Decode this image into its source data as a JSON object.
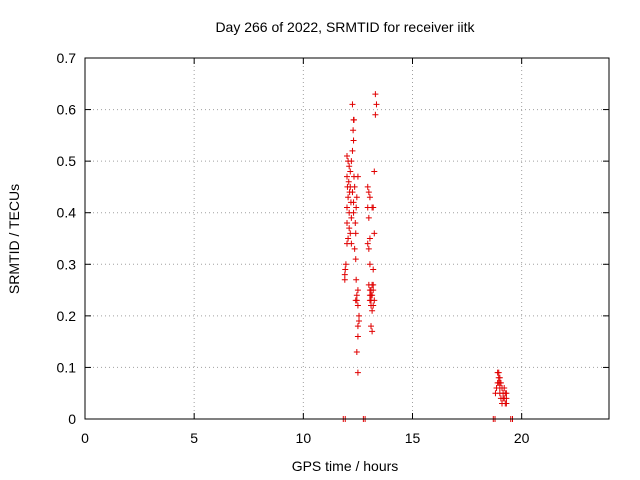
{
  "chart_data": {
    "type": "scatter",
    "title": "Day 266 of 2022, SRMTID for receiver iitk",
    "xlabel": "GPS time / hours",
    "ylabel": "SRMTID / TECUs",
    "xlim": [
      0,
      24
    ],
    "ylim": [
      0,
      0.7
    ],
    "x_ticks": [
      "0",
      "5",
      "10",
      "15",
      "20"
    ],
    "y_ticks": [
      "0",
      "0.1",
      "0.2",
      "0.3",
      "0.4",
      "0.5",
      "0.6",
      "0.7"
    ],
    "grid": true,
    "marker": "plus",
    "color": "#e00000",
    "points": [
      [
        11.83,
        0.0
      ],
      [
        11.92,
        0.0
      ],
      [
        12.75,
        0.0
      ],
      [
        12.83,
        0.0
      ],
      [
        18.7,
        0.0
      ],
      [
        18.78,
        0.0
      ],
      [
        19.5,
        0.0
      ],
      [
        19.58,
        0.0
      ],
      [
        11.9,
        0.28
      ],
      [
        11.92,
        0.29
      ],
      [
        11.95,
        0.3
      ],
      [
        11.9,
        0.27
      ],
      [
        12.0,
        0.34
      ],
      [
        12.05,
        0.35
      ],
      [
        12.1,
        0.37
      ],
      [
        12.0,
        0.41
      ],
      [
        12.05,
        0.43
      ],
      [
        12.02,
        0.45
      ],
      [
        12.08,
        0.46
      ],
      [
        12.0,
        0.47
      ],
      [
        12.05,
        0.5
      ],
      [
        12.0,
        0.51
      ],
      [
        12.1,
        0.49
      ],
      [
        12.12,
        0.44
      ],
      [
        12.15,
        0.48
      ],
      [
        12.18,
        0.42
      ],
      [
        12.2,
        0.39
      ],
      [
        12.15,
        0.36
      ],
      [
        12.2,
        0.34
      ],
      [
        12.25,
        0.52
      ],
      [
        12.28,
        0.56
      ],
      [
        12.3,
        0.58
      ],
      [
        12.32,
        0.58
      ],
      [
        12.25,
        0.61
      ],
      [
        12.3,
        0.54
      ],
      [
        12.32,
        0.47
      ],
      [
        12.35,
        0.45
      ],
      [
        12.3,
        0.4
      ],
      [
        12.38,
        0.38
      ],
      [
        12.35,
        0.33
      ],
      [
        12.4,
        0.31
      ],
      [
        12.42,
        0.27
      ],
      [
        12.45,
        0.24
      ],
      [
        12.4,
        0.23
      ],
      [
        12.5,
        0.25
      ],
      [
        12.5,
        0.22
      ],
      [
        12.55,
        0.19
      ],
      [
        12.5,
        0.18
      ],
      [
        12.5,
        0.16
      ],
      [
        12.45,
        0.13
      ],
      [
        12.5,
        0.09
      ],
      [
        12.55,
        0.2
      ],
      [
        12.5,
        0.47
      ],
      [
        12.45,
        0.43
      ],
      [
        12.42,
        0.41
      ],
      [
        12.2,
        0.5
      ],
      [
        12.15,
        0.45
      ],
      [
        12.25,
        0.44
      ],
      [
        12.3,
        0.42
      ],
      [
        12.1,
        0.4
      ],
      [
        12.0,
        0.38
      ],
      [
        12.4,
        0.36
      ],
      [
        12.45,
        0.23
      ],
      [
        12.95,
        0.45
      ],
      [
        13.0,
        0.44
      ],
      [
        13.05,
        0.43
      ],
      [
        12.95,
        0.41
      ],
      [
        13.0,
        0.39
      ],
      [
        13.05,
        0.35
      ],
      [
        12.95,
        0.34
      ],
      [
        13.0,
        0.33
      ],
      [
        13.05,
        0.3
      ],
      [
        13.0,
        0.26
      ],
      [
        13.05,
        0.25
      ],
      [
        13.1,
        0.24
      ],
      [
        13.05,
        0.23
      ],
      [
        13.1,
        0.22
      ],
      [
        13.15,
        0.21
      ],
      [
        13.1,
        0.18
      ],
      [
        13.15,
        0.17
      ],
      [
        13.2,
        0.26
      ],
      [
        13.2,
        0.25
      ],
      [
        13.15,
        0.24
      ],
      [
        13.25,
        0.23
      ],
      [
        13.2,
        0.29
      ],
      [
        13.25,
        0.36
      ],
      [
        13.2,
        0.41
      ],
      [
        13.25,
        0.48
      ],
      [
        13.3,
        0.59
      ],
      [
        13.35,
        0.61
      ],
      [
        13.3,
        0.63
      ],
      [
        13.15,
        0.26
      ],
      [
        13.1,
        0.25
      ],
      [
        13.05,
        0.24
      ],
      [
        13.1,
        0.23
      ],
      [
        13.2,
        0.22
      ],
      [
        13.15,
        0.41
      ],
      [
        18.8,
        0.05
      ],
      [
        18.85,
        0.06
      ],
      [
        18.9,
        0.07
      ],
      [
        18.95,
        0.08
      ],
      [
        18.9,
        0.09
      ],
      [
        18.95,
        0.09
      ],
      [
        19.0,
        0.08
      ],
      [
        18.95,
        0.07
      ],
      [
        19.0,
        0.06
      ],
      [
        19.05,
        0.07
      ],
      [
        19.0,
        0.05
      ],
      [
        19.05,
        0.04
      ],
      [
        19.1,
        0.06
      ],
      [
        19.15,
        0.05
      ],
      [
        19.2,
        0.06
      ],
      [
        19.25,
        0.05
      ],
      [
        19.2,
        0.04
      ],
      [
        19.25,
        0.03
      ],
      [
        19.3,
        0.04
      ],
      [
        19.3,
        0.05
      ],
      [
        19.3,
        0.03
      ],
      [
        19.1,
        0.03
      ],
      [
        19.15,
        0.04
      ],
      [
        19.0,
        0.07
      ]
    ]
  }
}
